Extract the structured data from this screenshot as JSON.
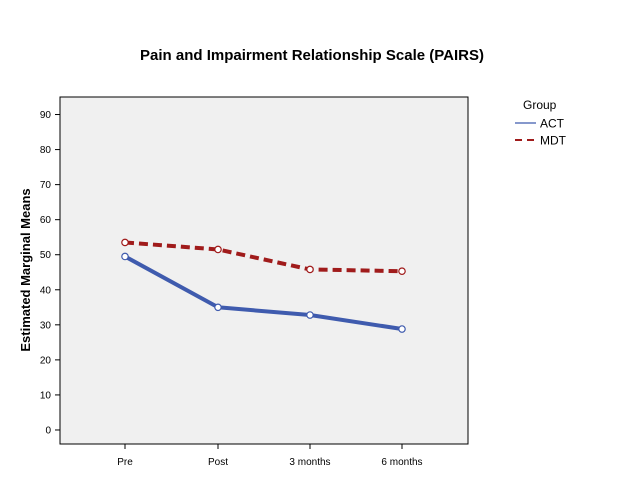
{
  "chart_data": {
    "type": "line",
    "title": "Pain and Impairment Relationship Scale (PAIRS)",
    "xlabel": "",
    "ylabel": "Estimated Marginal Means",
    "categories": [
      "Pre",
      "Post",
      "3 months",
      "6 months"
    ],
    "ylim": [
      -4,
      95
    ],
    "yticks": [
      0,
      10,
      20,
      30,
      40,
      50,
      60,
      70,
      80,
      90
    ],
    "grid": false,
    "legend": {
      "title": "Group",
      "placement": "right"
    },
    "series": [
      {
        "name": "ACT",
        "values": [
          49.5,
          35.0,
          32.8,
          28.8
        ],
        "color": "#3F5BAE",
        "dash": "solid"
      },
      {
        "name": "MDT",
        "values": [
          53.5,
          51.5,
          45.8,
          45.3
        ],
        "color": "#A01B1B",
        "dash": "dashed"
      }
    ],
    "plot_background": "#F0F0F0"
  }
}
